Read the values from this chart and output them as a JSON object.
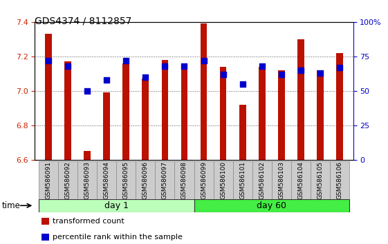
{
  "title": "GDS4374 / 8112857",
  "samples": [
    "GSM586091",
    "GSM586092",
    "GSM586093",
    "GSM586094",
    "GSM586095",
    "GSM586096",
    "GSM586097",
    "GSM586098",
    "GSM586099",
    "GSM586100",
    "GSM586101",
    "GSM586102",
    "GSM586103",
    "GSM586104",
    "GSM586105",
    "GSM586106"
  ],
  "transformed_count": [
    7.33,
    7.17,
    6.65,
    6.99,
    7.16,
    7.07,
    7.18,
    7.16,
    7.39,
    7.14,
    6.92,
    7.14,
    7.12,
    7.3,
    7.12,
    7.22
  ],
  "percentile_rank": [
    72,
    68,
    50,
    58,
    72,
    60,
    68,
    68,
    72,
    62,
    55,
    68,
    62,
    65,
    63,
    67
  ],
  "bar_color": "#bb1100",
  "dot_color": "#0000cc",
  "ylim_left": [
    6.6,
    7.4
  ],
  "ylim_right": [
    0,
    100
  ],
  "right_ticks": [
    0,
    25,
    50,
    75,
    100
  ],
  "right_tick_labels": [
    "0",
    "25",
    "50",
    "75",
    "100%"
  ],
  "left_ticks": [
    6.6,
    6.8,
    7.0,
    7.2,
    7.4
  ],
  "groups": [
    {
      "label": "day 1",
      "start": 0,
      "end": 8,
      "color": "#bbffbb"
    },
    {
      "label": "day 60",
      "start": 8,
      "end": 16,
      "color": "#44ee44"
    }
  ],
  "background_color": "#ffffff",
  "grid_color": "#555555",
  "left_axis_color": "#cc2200",
  "right_axis_color": "#0000cc",
  "bar_width": 0.35,
  "dot_size": 28,
  "time_label": "time",
  "legend_items": [
    {
      "label": "transformed count",
      "color": "#bb1100"
    },
    {
      "label": "percentile rank within the sample",
      "color": "#0000cc"
    }
  ],
  "sample_bg_color": "#cccccc",
  "sample_border_color": "#888888"
}
